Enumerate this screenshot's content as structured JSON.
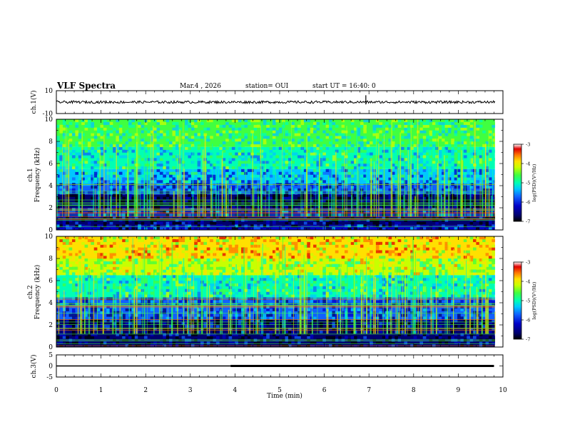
{
  "header": {
    "title": "VLF Spectra",
    "date": "Mar.4 , 2026",
    "station": "station= OUI",
    "start": "start UT = 16:40: 0"
  },
  "colors": {
    "ch1_trace": "#000000",
    "ch3_trace": "#000000",
    "colormap": [
      "#000000",
      "#00006e",
      "#0000c8",
      "#1060ff",
      "#00c8ff",
      "#00ffb4",
      "#40ff40",
      "#c8ff00",
      "#ffe000",
      "#ff7800",
      "#e00000",
      "#ffffff"
    ]
  },
  "chart_data": [
    {
      "type": "line",
      "id": "ch1",
      "ylabel": "ch.1(V)",
      "ylim": [
        -10,
        10
      ],
      "yticks": [
        "10",
        "-10"
      ],
      "series": [
        {
          "values_description_level": 0
        }
      ]
    },
    {
      "type": "heatmap",
      "id": "ch1-spectrogram",
      "ylabel_top": "ch.1",
      "ylabel": "Frequency (kHz)",
      "ylim": [
        0,
        10
      ],
      "yticks": [
        "0",
        "2",
        "4",
        "6",
        "8",
        "10"
      ],
      "colorbar": {
        "label": "log(PSD)(V²/Hz)",
        "range": [
          -7,
          -3
        ],
        "ticks": [
          "-3",
          "-4",
          "-5",
          "-6",
          "-7"
        ]
      },
      "bands_khz": [
        {
          "from": 0,
          "to": 0.4,
          "level": -6.3
        },
        {
          "from": 0.4,
          "to": 1.2,
          "level": -6.6
        },
        {
          "from": 1.2,
          "to": 2.0,
          "level": -6.3
        },
        {
          "from": 2.0,
          "to": 3.2,
          "level": -6.8
        },
        {
          "from": 3.2,
          "to": 4.2,
          "level": -6.0
        },
        {
          "from": 4.2,
          "to": 5.5,
          "level": -5.5
        },
        {
          "from": 5.5,
          "to": 7.5,
          "level": -5.1
        },
        {
          "from": 7.5,
          "to": 10,
          "level": -4.8
        }
      ]
    },
    {
      "type": "heatmap",
      "id": "ch2-spectrogram",
      "ylabel_top": "ch.2",
      "ylabel": "Frequency (kHz)",
      "ylim": [
        0,
        10
      ],
      "yticks": [
        "0",
        "2",
        "4",
        "6",
        "8",
        "10"
      ],
      "colorbar": {
        "label": "log(PSD)(V²/Hz)",
        "range": [
          -7,
          -3
        ],
        "ticks": [
          "-3",
          "-4",
          "-5",
          "-6",
          "-7"
        ]
      },
      "bands_khz": [
        {
          "from": 0,
          "to": 0.6,
          "level": -6.5
        },
        {
          "from": 0.6,
          "to": 2.5,
          "level": -6.5
        },
        {
          "from": 2.5,
          "to": 4.5,
          "level": -6.0
        },
        {
          "from": 4.5,
          "to": 6.5,
          "level": -5.0
        },
        {
          "from": 6.5,
          "to": 8.0,
          "level": -4.3
        },
        {
          "from": 8.0,
          "to": 10,
          "level": -3.8
        }
      ]
    },
    {
      "type": "line",
      "id": "ch3",
      "ylabel": "ch.3(V)",
      "ylim": [
        -5,
        5
      ],
      "yticks": [
        "5",
        "0",
        "-5"
      ],
      "series": [
        {
          "x": [
            0,
            3.9
          ],
          "y": [
            0,
            0
          ]
        },
        {
          "x": [
            3.9,
            9.8
          ],
          "y": [
            0,
            0
          ],
          "bold": true
        }
      ]
    }
  ],
  "xaxis": {
    "label": "Time (min)",
    "range": [
      0,
      10
    ],
    "ticks": [
      "0",
      "1",
      "2",
      "3",
      "4",
      "5",
      "6",
      "7",
      "8",
      "9",
      "10"
    ]
  }
}
